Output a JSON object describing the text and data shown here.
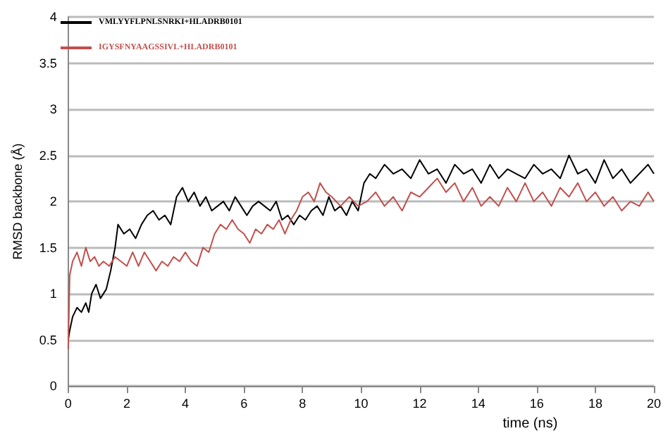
{
  "chart_data": {
    "type": "line",
    "xlabel": "time (ns)",
    "ylabel": "RMSD backbone (Å)",
    "xlim": [
      0,
      20
    ],
    "xticks": [
      0,
      2,
      4,
      6,
      8,
      10,
      12,
      14,
      16,
      18,
      20
    ],
    "ylim": [
      0,
      4
    ],
    "yticks": [
      0,
      0.5,
      1,
      1.5,
      2,
      2.5,
      3,
      3.5,
      4
    ],
    "grid": "y",
    "legend": "top left",
    "marker": "none",
    "line_style": "solid",
    "series": [
      {
        "name": "VMLYYFLPNLSNRKI+HLADRB0101",
        "color": "#000000",
        "x": [
          0,
          0.05,
          0.15,
          0.3,
          0.45,
          0.6,
          0.7,
          0.8,
          0.95,
          1.1,
          1.3,
          1.45,
          1.6,
          1.7,
          1.9,
          2.1,
          2.3,
          2.5,
          2.7,
          2.9,
          3.1,
          3.3,
          3.5,
          3.7,
          3.9,
          4.1,
          4.3,
          4.5,
          4.7,
          4.9,
          5.1,
          5.3,
          5.5,
          5.7,
          5.9,
          6.1,
          6.3,
          6.5,
          6.7,
          6.9,
          7.1,
          7.3,
          7.5,
          7.7,
          7.9,
          8.1,
          8.3,
          8.5,
          8.7,
          8.9,
          9.1,
          9.3,
          9.5,
          9.7,
          9.9,
          10.1,
          10.3,
          10.5,
          10.8,
          11.1,
          11.4,
          11.7,
          12,
          12.3,
          12.6,
          12.9,
          13.2,
          13.5,
          13.8,
          14.1,
          14.4,
          14.7,
          15,
          15.3,
          15.6,
          15.9,
          16.2,
          16.5,
          16.8,
          17.1,
          17.4,
          17.7,
          18,
          18.3,
          18.6,
          18.9,
          19.2,
          19.5,
          19.8,
          20
        ],
        "values": [
          0.5,
          0.6,
          0.75,
          0.85,
          0.8,
          0.9,
          0.8,
          1.0,
          1.1,
          0.95,
          1.05,
          1.25,
          1.5,
          1.75,
          1.65,
          1.7,
          1.6,
          1.75,
          1.85,
          1.9,
          1.8,
          1.85,
          1.75,
          2.05,
          2.15,
          2.0,
          2.1,
          1.95,
          2.05,
          1.9,
          1.95,
          2.0,
          1.9,
          2.05,
          1.95,
          1.85,
          1.95,
          2.0,
          1.95,
          1.9,
          2.0,
          1.8,
          1.85,
          1.75,
          1.85,
          1.8,
          1.9,
          1.95,
          1.85,
          2.05,
          1.9,
          1.95,
          1.85,
          2.0,
          1.9,
          2.2,
          2.3,
          2.25,
          2.4,
          2.3,
          2.35,
          2.25,
          2.45,
          2.3,
          2.35,
          2.2,
          2.4,
          2.3,
          2.35,
          2.2,
          2.4,
          2.25,
          2.35,
          2.3,
          2.25,
          2.4,
          2.3,
          2.35,
          2.25,
          2.5,
          2.3,
          2.35,
          2.2,
          2.45,
          2.25,
          2.35,
          2.2,
          2.3,
          2.4,
          2.3
        ]
      },
      {
        "name": "IGYSFNYAAGSSIVL+HLADRB0101",
        "color": "#c0504d",
        "x": [
          0,
          0.05,
          0.15,
          0.3,
          0.45,
          0.6,
          0.75,
          0.9,
          1.05,
          1.2,
          1.4,
          1.6,
          1.8,
          2.0,
          2.2,
          2.4,
          2.6,
          2.8,
          3.0,
          3.2,
          3.4,
          3.6,
          3.8,
          4.0,
          4.2,
          4.4,
          4.6,
          4.8,
          5.0,
          5.2,
          5.4,
          5.6,
          5.8,
          6.0,
          6.2,
          6.4,
          6.6,
          6.8,
          7.0,
          7.2,
          7.4,
          7.6,
          7.8,
          8.0,
          8.2,
          8.4,
          8.6,
          8.8,
          9.0,
          9.3,
          9.6,
          9.9,
          10.2,
          10.5,
          10.8,
          11.1,
          11.4,
          11.7,
          12,
          12.3,
          12.6,
          12.9,
          13.2,
          13.5,
          13.8,
          14.1,
          14.4,
          14.7,
          15,
          15.3,
          15.6,
          15.9,
          16.2,
          16.5,
          16.8,
          17.1,
          17.4,
          17.7,
          18,
          18.3,
          18.6,
          18.9,
          19.2,
          19.5,
          19.8,
          20
        ],
        "values": [
          0.4,
          1.2,
          1.35,
          1.45,
          1.3,
          1.5,
          1.35,
          1.4,
          1.3,
          1.35,
          1.3,
          1.4,
          1.35,
          1.3,
          1.45,
          1.3,
          1.45,
          1.35,
          1.25,
          1.35,
          1.3,
          1.4,
          1.35,
          1.45,
          1.35,
          1.3,
          1.5,
          1.45,
          1.65,
          1.75,
          1.7,
          1.8,
          1.7,
          1.65,
          1.55,
          1.7,
          1.65,
          1.75,
          1.7,
          1.8,
          1.65,
          1.8,
          1.9,
          2.05,
          2.1,
          2.0,
          2.2,
          2.1,
          2.05,
          1.95,
          2.05,
          1.95,
          2.0,
          2.1,
          1.95,
          2.05,
          1.9,
          2.1,
          2.05,
          2.15,
          2.25,
          2.1,
          2.2,
          2.0,
          2.15,
          1.95,
          2.05,
          1.95,
          2.15,
          2.0,
          2.2,
          2.0,
          2.1,
          1.95,
          2.15,
          2.05,
          2.2,
          2.0,
          2.1,
          1.95,
          2.05,
          1.9,
          2.0,
          1.95,
          2.1,
          2.0
        ]
      }
    ]
  }
}
